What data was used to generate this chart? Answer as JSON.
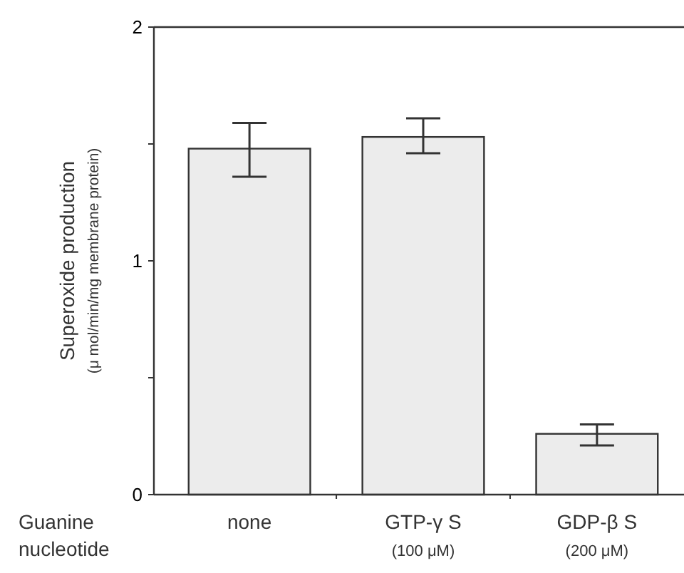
{
  "chart_data": {
    "type": "bar",
    "xlabel": "Guanine\nnucleotide",
    "ylabel": "Superoxide production\n(μ mol/min/mg membrane protein)",
    "categories": [
      "none",
      "GTP-γ S\n(100 μM)",
      "GDP-β S\n(200 μM)"
    ],
    "values": [
      1.48,
      1.53,
      0.26
    ],
    "errors": [
      [
        1.36,
        1.59
      ],
      [
        1.46,
        1.61
      ],
      [
        0.21,
        0.3
      ]
    ],
    "color": "#ececec",
    "ylim": [
      0,
      2
    ],
    "yticks": [
      0,
      {
        "value": 0.5,
        "label": null
      },
      1,
      {
        "value": 1.5,
        "label": null
      },
      2
    ],
    "grid": false
  }
}
